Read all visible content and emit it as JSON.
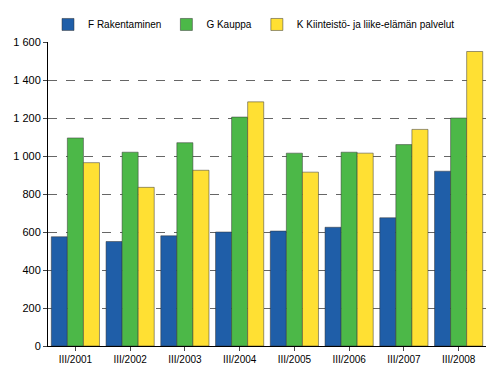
{
  "chart_data": {
    "type": "bar",
    "categories": [
      "III/2001",
      "III/2002",
      "III/2003",
      "III/2004",
      "III/2005",
      "III/2006",
      "III/2007",
      "III/2008"
    ],
    "series": [
      {
        "name": "F Rakentaminen",
        "color": "#1f5ea8",
        "values": [
          575,
          550,
          580,
          600,
          605,
          625,
          675,
          920
        ]
      },
      {
        "name": "G Kauppa",
        "color": "#4cb848",
        "values": [
          1095,
          1020,
          1070,
          1205,
          1015,
          1020,
          1060,
          1200
        ]
      },
      {
        "name": "K Kiinteistö- ja liike-elämän palvelut",
        "color": "#ffe033",
        "values": [
          965,
          835,
          925,
          1285,
          915,
          1015,
          1140,
          1550
        ]
      }
    ],
    "ylim": [
      0,
      1600
    ],
    "yticks": [
      0,
      200,
      400,
      600,
      800,
      {
        "value": 1000,
        "label": "1 000"
      },
      {
        "value": 1200,
        "label": "1 200"
      },
      {
        "value": 1400,
        "label": "1 400"
      },
      {
        "value": 1600,
        "label": "1 600"
      }
    ],
    "grid": true,
    "legend": "top"
  }
}
